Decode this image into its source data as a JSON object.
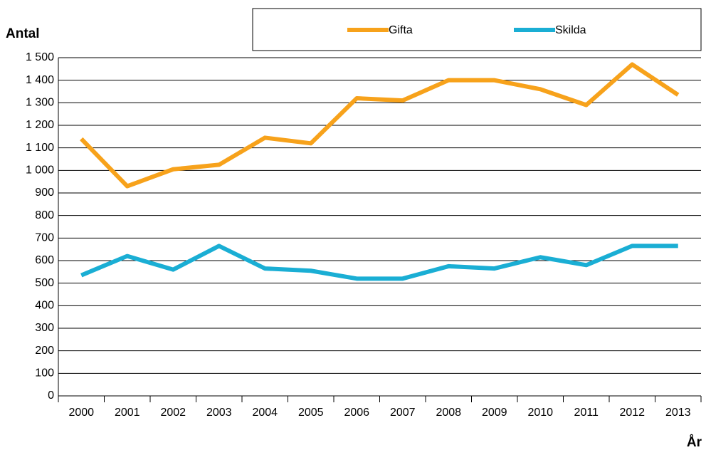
{
  "chart_data": {
    "type": "line",
    "y_label": "Antal",
    "x_label": "År",
    "categories": [
      "2000",
      "2001",
      "2002",
      "2003",
      "2004",
      "2005",
      "2006",
      "2007",
      "2008",
      "2009",
      "2010",
      "2011",
      "2012",
      "2013"
    ],
    "series": [
      {
        "name": "Gifta",
        "color": "#f7a21b",
        "values": [
          1140,
          930,
          1005,
          1025,
          1145,
          1120,
          1320,
          1310,
          1400,
          1400,
          1360,
          1290,
          1470,
          1335
        ]
      },
      {
        "name": "Skilda",
        "color": "#1aaed4",
        "values": [
          535,
          620,
          560,
          665,
          565,
          555,
          520,
          520,
          575,
          565,
          615,
          580,
          665,
          665
        ]
      }
    ],
    "ylim": [
      0,
      1500
    ],
    "yticks": [
      0,
      100,
      200,
      300,
      400,
      500,
      600,
      700,
      800,
      900,
      {
        "value": 1000,
        "label": "1 000"
      },
      {
        "value": 1100,
        "label": "1 100"
      },
      {
        "value": 1200,
        "label": "1 200"
      },
      {
        "value": 1300,
        "label": "1 300"
      },
      {
        "value": 1400,
        "label": "1 400"
      },
      {
        "value": 1500,
        "label": "1 500"
      }
    ],
    "grid": true,
    "legend": "top"
  }
}
